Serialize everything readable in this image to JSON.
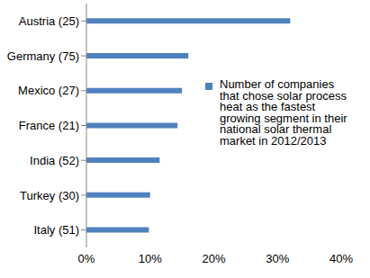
{
  "chart_data": {
    "type": "bar",
    "orientation": "horizontal",
    "categories": [
      "Austria (25)",
      "Germany (75)",
      "Mexico (27)",
      "France (21)",
      "India (52)",
      "Turkey (30)",
      "Italy (51)"
    ],
    "series": [
      {
        "name": "Number of companies that chose solar process heat as the fastest growing segment in their national solar thermal market in 2012/2013",
        "color": "#4f81bd",
        "values": [
          32,
          16,
          15,
          14.3,
          11.5,
          10,
          9.8
        ]
      }
    ],
    "xlim": [
      0,
      40
    ],
    "xticks": [
      {
        "value": 0,
        "label": "0%"
      },
      {
        "value": 10,
        "label": "10%"
      },
      {
        "value": 20,
        "label": "20%"
      },
      {
        "value": 30,
        "label": "30%"
      },
      {
        "value": 40,
        "label": "40%"
      }
    ],
    "grid": false,
    "legend": "right"
  }
}
